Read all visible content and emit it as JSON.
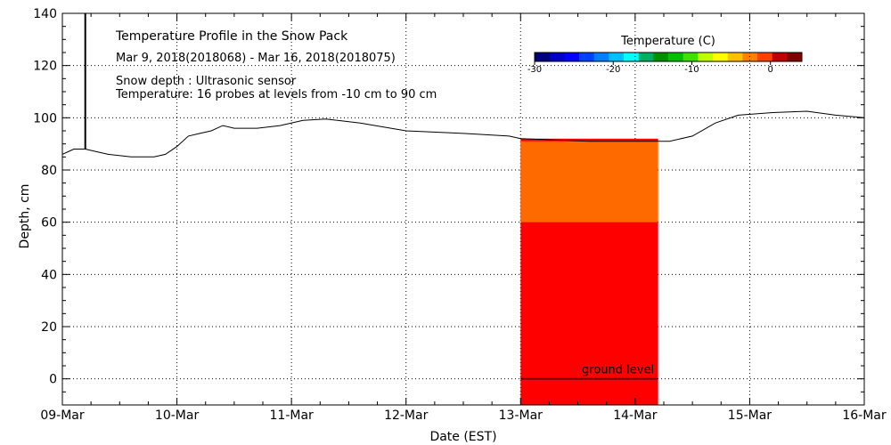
{
  "chart_data": {
    "type": "line",
    "title": "Temperature Profile in the Snow Pack",
    "subtitle": "Mar  9, 2018(2018068) - Mar 16, 2018(2018075)",
    "notes": [
      "Snow depth : Ultrasonic sensor",
      "Temperature: 16 probes at levels from -10 cm to 90 cm"
    ],
    "xlabel": "Date (EST)",
    "ylabel": "Depth, cm",
    "x_ticks": [
      "09-Mar",
      "10-Mar",
      "11-Mar",
      "12-Mar",
      "13-Mar",
      "14-Mar",
      "15-Mar",
      "16-Mar"
    ],
    "y_ticks": [
      "0",
      "20",
      "40",
      "60",
      "80",
      "100",
      "120",
      "140"
    ],
    "ylim": [
      -10,
      140
    ],
    "xlim_days": [
      0,
      7
    ],
    "grid": true,
    "ground_level_label": "ground level",
    "ground_level_depth": 0,
    "snow_depth": [
      {
        "x": 0.0,
        "y": 86
      },
      {
        "x": 0.05,
        "y": 87
      },
      {
        "x": 0.1,
        "y": 88
      },
      {
        "x": 0.2,
        "y": 88
      },
      {
        "x": 0.3,
        "y": 87
      },
      {
        "x": 0.4,
        "y": 86
      },
      {
        "x": 0.6,
        "y": 85
      },
      {
        "x": 0.8,
        "y": 85
      },
      {
        "x": 0.9,
        "y": 86
      },
      {
        "x": 1.0,
        "y": 89
      },
      {
        "x": 1.1,
        "y": 93
      },
      {
        "x": 1.2,
        "y": 94
      },
      {
        "x": 1.3,
        "y": 95
      },
      {
        "x": 1.4,
        "y": 97
      },
      {
        "x": 1.5,
        "y": 96
      },
      {
        "x": 1.7,
        "y": 96
      },
      {
        "x": 1.9,
        "y": 97
      },
      {
        "x": 2.1,
        "y": 99
      },
      {
        "x": 2.3,
        "y": 99.5
      },
      {
        "x": 2.6,
        "y": 98
      },
      {
        "x": 3.0,
        "y": 95
      },
      {
        "x": 3.5,
        "y": 94
      },
      {
        "x": 3.9,
        "y": 93
      },
      {
        "x": 4.0,
        "y": 92
      },
      {
        "x": 4.3,
        "y": 91.5
      },
      {
        "x": 4.6,
        "y": 91
      },
      {
        "x": 5.0,
        "y": 91
      },
      {
        "x": 5.3,
        "y": 91
      },
      {
        "x": 5.5,
        "y": 93
      },
      {
        "x": 5.7,
        "y": 98
      },
      {
        "x": 5.9,
        "y": 101
      },
      {
        "x": 6.2,
        "y": 102
      },
      {
        "x": 6.5,
        "y": 102.5
      },
      {
        "x": 6.75,
        "y": 101
      },
      {
        "x": 7.0,
        "y": 100
      }
    ],
    "temperature_colorbar": {
      "title": "Temperature (C)",
      "ticks": [
        "-30",
        "-20",
        "-10",
        "0"
      ],
      "range": [
        -30,
        4
      ],
      "colors": [
        "#00007f",
        "#0000c8",
        "#0000ff",
        "#0040ff",
        "#0080ff",
        "#00c0ff",
        "#00ffff",
        "#00b060",
        "#009000",
        "#00c000",
        "#40e000",
        "#c0ff00",
        "#ffff00",
        "#ffc000",
        "#ff8000",
        "#ff4000",
        "#c00000",
        "#7f0000"
      ]
    },
    "temperature_blocks": [
      {
        "x0": 4.0,
        "x1": 5.2,
        "y0": -10,
        "y1": 92,
        "temp_color": "#ff0000"
      },
      {
        "x0": 4.0,
        "x1": 5.2,
        "y0": 60,
        "y1": 91,
        "temp_color": "#ff6a00"
      }
    ],
    "colors": {
      "line": "#000000",
      "grid": "#000000",
      "temp_high": "#ff0000",
      "temp_warm": "#ff6a00"
    }
  }
}
